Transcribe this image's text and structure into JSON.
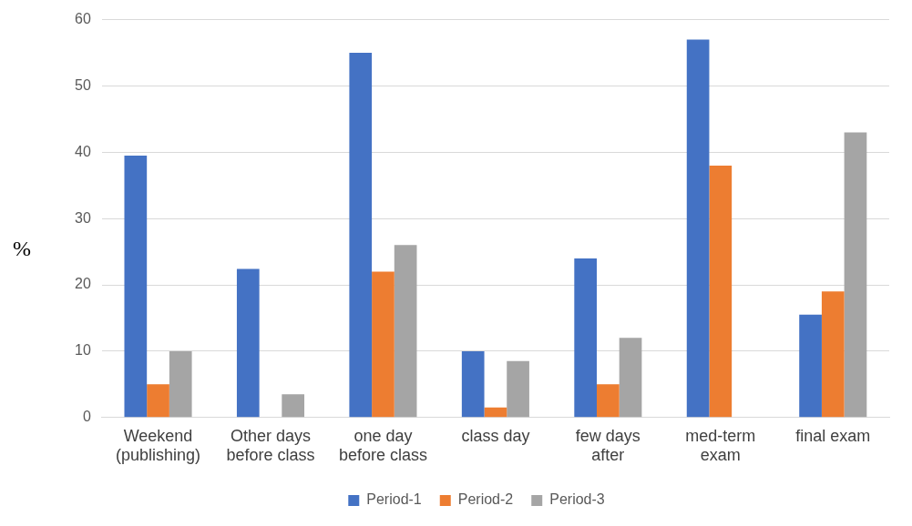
{
  "chart_data": {
    "type": "bar",
    "ylabel": "%",
    "categories": [
      "Weekend (publishing)",
      "Other days before class",
      "one day before class",
      "class day",
      "few days after",
      "med-term exam",
      "final exam"
    ],
    "series": [
      {
        "name": "Period-1",
        "color": "#4472c4",
        "values": [
          39.5,
          22.4,
          55,
          10,
          24,
          57,
          15.5
        ]
      },
      {
        "name": "Period-2",
        "color": "#ed7d31",
        "values": [
          5,
          0,
          22,
          1.5,
          5,
          38,
          19
        ]
      },
      {
        "name": "Period-3",
        "color": "#a5a5a5",
        "values": [
          10,
          3.5,
          26,
          8.5,
          12,
          0,
          43
        ]
      }
    ],
    "ylim": [
      0,
      60
    ],
    "yticks": [
      0,
      10,
      20,
      30,
      40,
      50,
      60
    ],
    "grid": "y",
    "legend": "bottom"
  }
}
